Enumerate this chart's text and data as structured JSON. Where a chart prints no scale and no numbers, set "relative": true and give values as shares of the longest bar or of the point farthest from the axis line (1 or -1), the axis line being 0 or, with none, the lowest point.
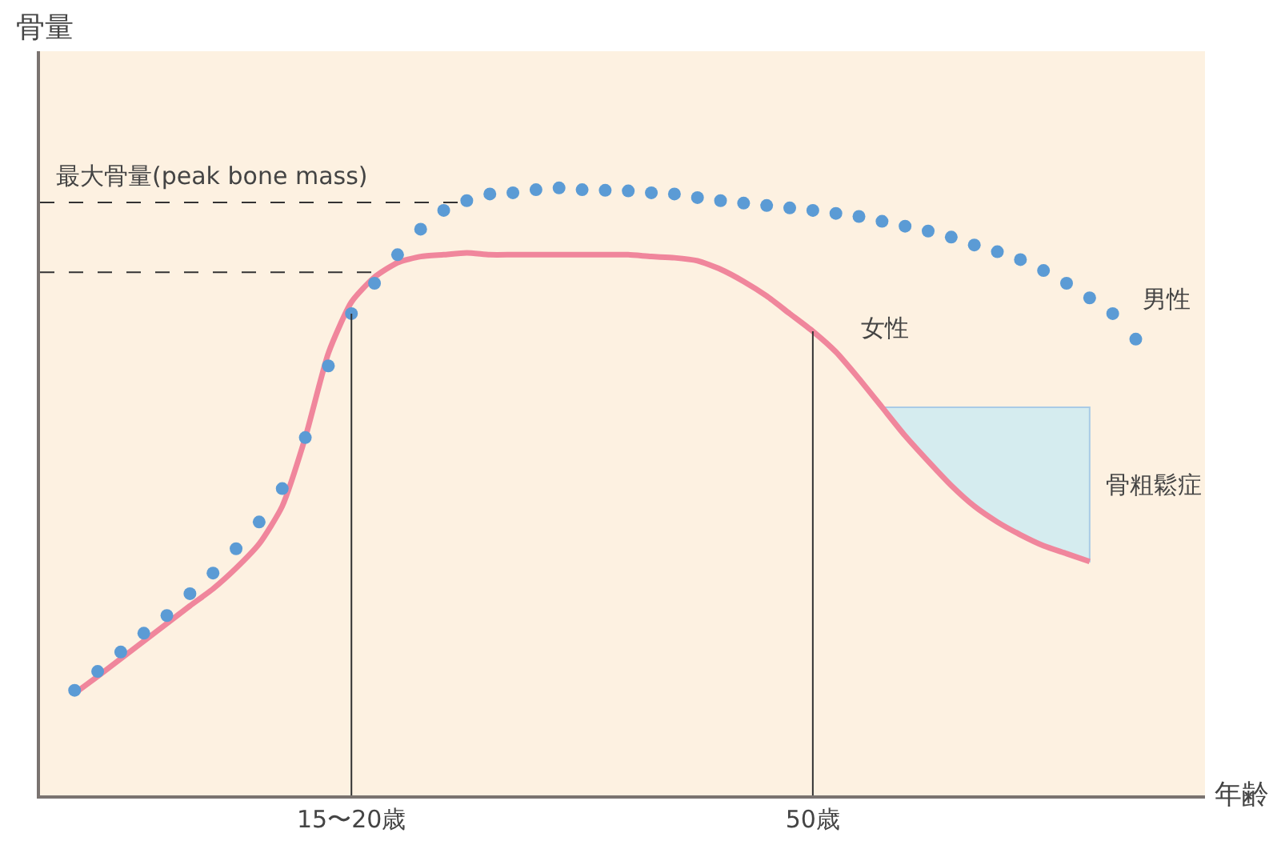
{
  "chart_data": {
    "type": "line",
    "relative": true,
    "ylabel": "骨量",
    "xlabel": "年齢",
    "categories": [
      null,
      null,
      null,
      null,
      null,
      null,
      null,
      null,
      null,
      null,
      null,
      null,
      "15〜20歳",
      null,
      null,
      null,
      null,
      null,
      null,
      null,
      null,
      null,
      null,
      null,
      null,
      null,
      null,
      null,
      null,
      null,
      null,
      null,
      "50歳",
      null,
      null,
      null,
      null,
      null,
      null,
      null,
      null,
      null,
      null,
      null,
      null,
      null,
      null
    ],
    "series": [
      {
        "name": "男性",
        "type": "scatter",
        "marker": "circle",
        "color": "#5b9bd5",
        "values": [
          0.173,
          0.204,
          0.236,
          0.267,
          0.296,
          0.332,
          0.366,
          0.406,
          0.45,
          0.505,
          0.589,
          0.707,
          0.793,
          0.843,
          0.89,
          0.932,
          0.963,
          0.979,
          0.99,
          0.992,
          0.997,
          1.0,
          0.997,
          0.996,
          0.995,
          0.992,
          0.99,
          0.984,
          0.979,
          0.975,
          0.971,
          0.967,
          0.963,
          0.958,
          0.953,
          0.945,
          0.937,
          0.929,
          0.919,
          0.906,
          0.895,
          0.882,
          0.864,
          0.843,
          0.819,
          0.793,
          0.751
        ]
      },
      {
        "name": "女性",
        "color": "#f0869c",
        "values": [
          0.168,
          0.196,
          0.225,
          0.254,
          0.283,
          0.312,
          0.34,
          0.374,
          0.414,
          0.476,
          0.589,
          0.728,
          0.812,
          0.853,
          0.877,
          0.887,
          0.89,
          0.893,
          0.89,
          0.89,
          0.89,
          0.89,
          0.89,
          0.89,
          0.89,
          0.887,
          0.885,
          0.88,
          0.866,
          0.846,
          0.822,
          0.793,
          0.764,
          0.73,
          0.686,
          0.639,
          0.592,
          0.55,
          0.51,
          0.476,
          0.45,
          0.429,
          0.411,
          0.398,
          0.385,
          null,
          null
        ]
      },
      {
        "name": "骨粗鬆症",
        "type": "area",
        "color": "#d5ecef",
        "values": [
          null,
          null,
          null,
          null,
          null,
          null,
          null,
          null,
          null,
          null,
          null,
          null,
          null,
          null,
          null,
          null,
          null,
          null,
          null,
          null,
          null,
          null,
          null,
          null,
          null,
          null,
          null,
          null,
          null,
          null,
          null,
          null,
          null,
          null,
          null,
          0.639,
          0.639,
          0.639,
          0.639,
          0.639,
          0.639,
          0.639,
          0.639,
          0.639,
          0.639,
          null,
          null
        ]
      }
    ],
    "ref_lines": [
      {
        "axis": "y",
        "value": 0.976,
        "label": "最大骨量(peak bone mass)",
        "line_style": "dashed"
      },
      {
        "axis": "y",
        "value": 0.861,
        "label": null,
        "line_style": "dashed"
      },
      {
        "axis": "x",
        "value": "15〜20歳",
        "label": null
      },
      {
        "axis": "x",
        "value": "50歳",
        "label": null
      }
    ],
    "tick_labels": "x",
    "grid": false
  }
}
